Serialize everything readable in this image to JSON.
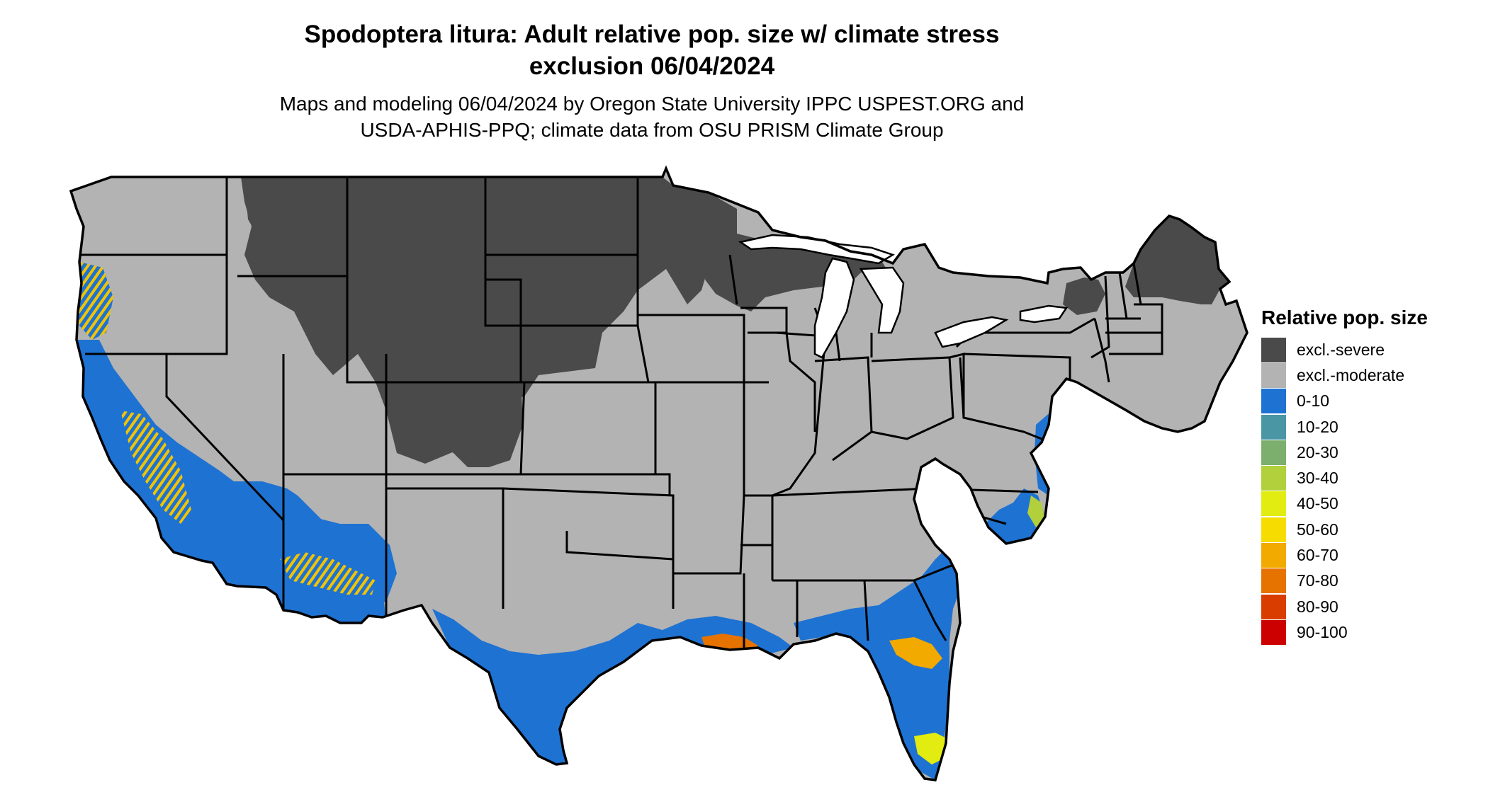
{
  "map": {
    "title_line1": "Spodoptera litura: Adult relative pop. size w/ climate stress",
    "title_line2": "exclusion 06/04/2024",
    "subtitle_line1": "Maps and modeling 06/04/2024 by Oregon State University IPPC USPEST.ORG and",
    "subtitle_line2": "USDA-APHIS-PPQ; climate data from OSU PRISM Climate Group"
  },
  "legend": {
    "title": "Relative pop. size",
    "items": [
      {
        "label": "excl.-severe",
        "color": "#4a4a4a"
      },
      {
        "label": "excl.-moderate",
        "color": "#b3b3b3"
      },
      {
        "label": "0-10",
        "color": "#1e72d2"
      },
      {
        "label": "10-20",
        "color": "#4a96a4"
      },
      {
        "label": "20-30",
        "color": "#7caf6e"
      },
      {
        "label": "30-40",
        "color": "#b2cf3c"
      },
      {
        "label": "40-50",
        "color": "#e2ec10"
      },
      {
        "label": "50-60",
        "color": "#f6dc00"
      },
      {
        "label": "60-70",
        "color": "#f2a900"
      },
      {
        "label": "70-80",
        "color": "#e67300"
      },
      {
        "label": "80-90",
        "color": "#d93d00"
      },
      {
        "label": "90-100",
        "color": "#cc0000"
      }
    ]
  }
}
